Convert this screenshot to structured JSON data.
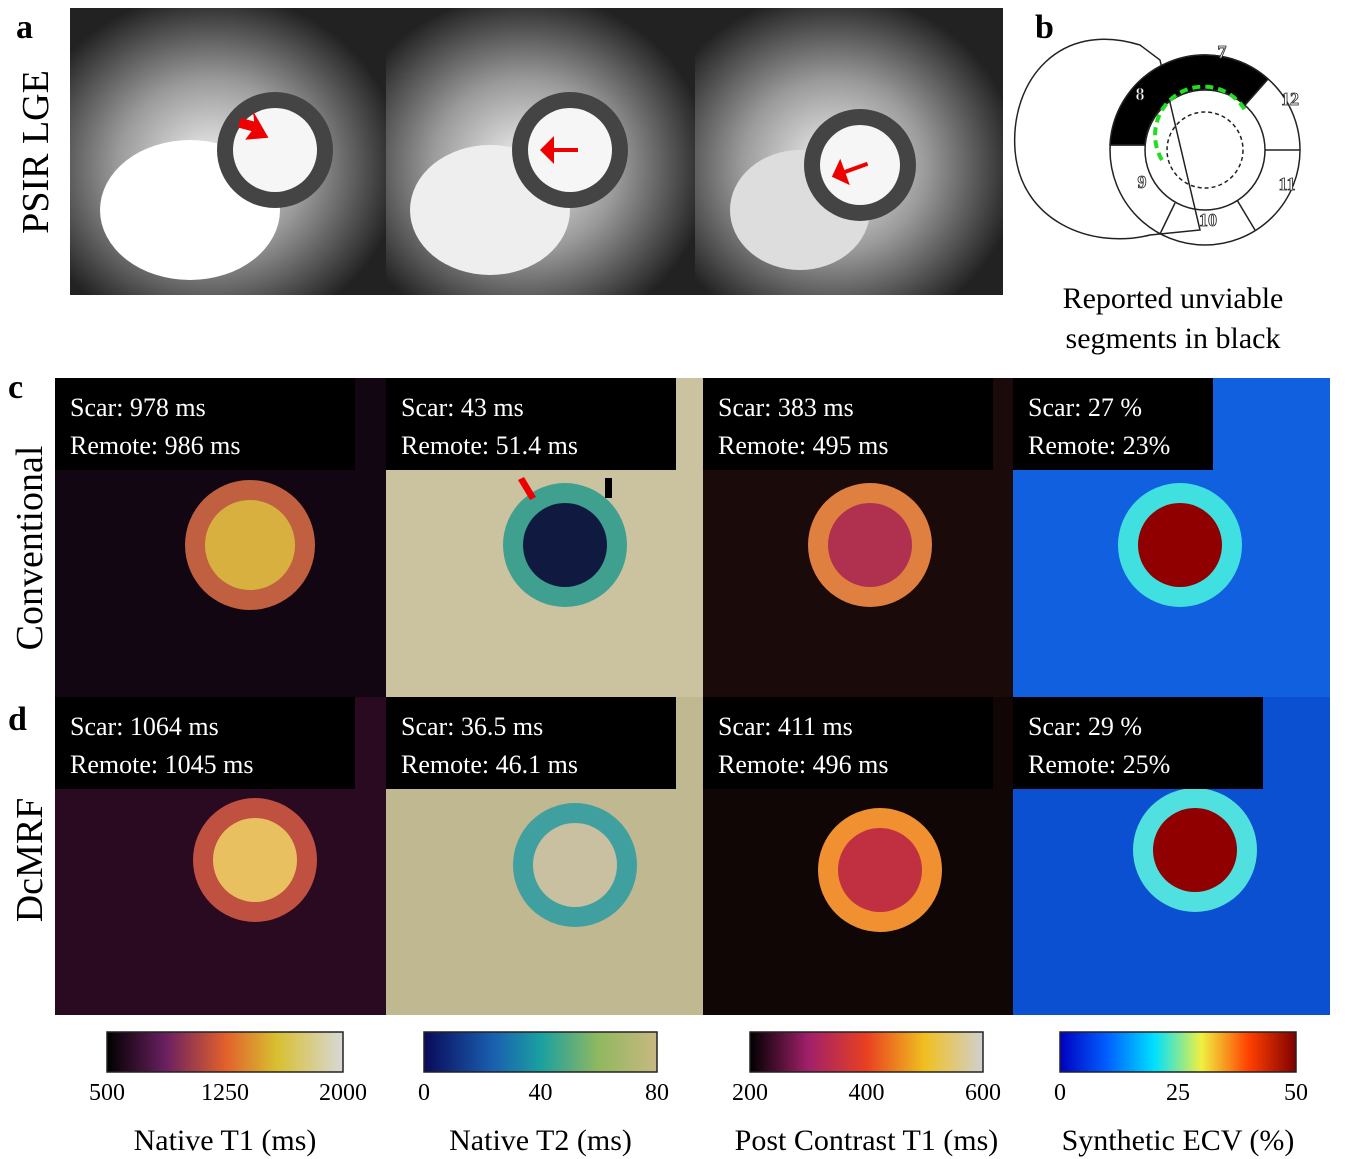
{
  "panels": {
    "a": {
      "label": "a",
      "row_label": "PSIR LGE"
    },
    "b": {
      "label": "b",
      "segments": [
        "7",
        "8",
        "9",
        "10",
        "11",
        "12"
      ],
      "caption_lines": [
        "Reported unviable",
        "segments in black"
      ]
    },
    "c": {
      "label": "c",
      "row_label": "Conventional",
      "maps": [
        {
          "scar": "Scar: 978 ms",
          "remote": "Remote: 986 ms"
        },
        {
          "scar": "Scar: 43 ms",
          "remote": "Remote: 51.4 ms"
        },
        {
          "scar": "Scar: 383 ms",
          "remote": "Remote: 495 ms"
        },
        {
          "scar": "Scar: 27 %",
          "remote": "Remote: 23%"
        }
      ]
    },
    "d": {
      "label": "d",
      "row_label": "DcMRF",
      "maps": [
        {
          "scar": "Scar: 1064 ms",
          "remote": "Remote: 1045 ms"
        },
        {
          "scar": "Scar: 36.5 ms",
          "remote": "Remote: 46.1 ms"
        },
        {
          "scar": "Scar: 411 ms",
          "remote": "Remote: 496 ms"
        },
        {
          "scar": "Scar: 29 %",
          "remote": "Remote: 25%"
        }
      ]
    }
  },
  "colorbars": [
    {
      "ticks": [
        "500",
        "1250",
        "2000"
      ],
      "label": "Native T1 (ms)"
    },
    {
      "ticks": [
        "0",
        "40",
        "80"
      ],
      "label": "Native T2 (ms)"
    },
    {
      "ticks": [
        "200",
        "400",
        "600"
      ],
      "label": "Post Contrast T1 (ms)"
    },
    {
      "ticks": [
        "0",
        "25",
        "50"
      ],
      "label": "Synthetic ECV (%)"
    }
  ]
}
